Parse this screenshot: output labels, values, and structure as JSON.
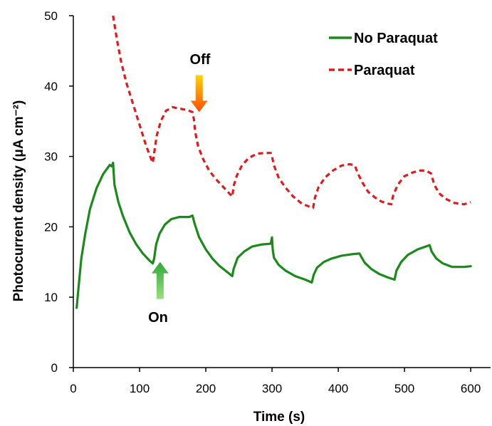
{
  "chart_data": {
    "type": "line",
    "xlabel": "Time (s)",
    "ylabel": "Photocurrent density (μA cm⁻²)",
    "xlim": [
      0,
      630
    ],
    "ylim": [
      0,
      50
    ],
    "xticks": [
      0,
      100,
      200,
      300,
      400,
      500,
      600
    ],
    "yticks": [
      0,
      10,
      20,
      30,
      40,
      50
    ],
    "grid": false,
    "legend_position": "top-right",
    "series": [
      {
        "name": "No Paraquat",
        "color": "#1a8a1a",
        "dash": "solid",
        "points": [
          [
            5,
            8.5
          ],
          [
            8,
            11.5
          ],
          [
            12,
            15.5
          ],
          [
            18,
            19
          ],
          [
            25,
            22.5
          ],
          [
            35,
            25.5
          ],
          [
            45,
            27.5
          ],
          [
            55,
            28.8
          ],
          [
            58,
            28.6
          ],
          [
            60,
            29.1
          ],
          [
            62,
            26
          ],
          [
            68,
            23.5
          ],
          [
            75,
            21.5
          ],
          [
            85,
            19.2
          ],
          [
            95,
            17.5
          ],
          [
            105,
            16.2
          ],
          [
            115,
            15.2
          ],
          [
            120,
            14.8
          ],
          [
            122,
            15.5
          ],
          [
            125,
            17.5
          ],
          [
            130,
            19
          ],
          [
            138,
            20.3
          ],
          [
            148,
            21.1
          ],
          [
            160,
            21.4
          ],
          [
            175,
            21.4
          ],
          [
            180,
            21.6
          ],
          [
            183,
            20.5
          ],
          [
            190,
            18.5
          ],
          [
            200,
            16.8
          ],
          [
            210,
            15.5
          ],
          [
            220,
            14.5
          ],
          [
            232,
            13.6
          ],
          [
            240,
            13
          ],
          [
            242,
            14
          ],
          [
            248,
            15.6
          ],
          [
            258,
            16.5
          ],
          [
            270,
            17.2
          ],
          [
            285,
            17.5
          ],
          [
            298,
            17.6
          ],
          [
            300,
            18.5
          ],
          [
            301,
            16.8
          ],
          [
            303,
            15.6
          ],
          [
            310,
            14.6
          ],
          [
            320,
            13.8
          ],
          [
            335,
            13
          ],
          [
            350,
            12.5
          ],
          [
            360,
            12.1
          ],
          [
            363,
            13.2
          ],
          [
            368,
            14.2
          ],
          [
            378,
            15
          ],
          [
            390,
            15.5
          ],
          [
            405,
            15.9
          ],
          [
            420,
            16.1
          ],
          [
            432,
            16.2
          ],
          [
            435,
            15.7
          ],
          [
            440,
            14.9
          ],
          [
            450,
            14
          ],
          [
            462,
            13.3
          ],
          [
            475,
            12.8
          ],
          [
            485,
            12.5
          ],
          [
            488,
            13.8
          ],
          [
            495,
            15
          ],
          [
            505,
            16
          ],
          [
            520,
            16.8
          ],
          [
            532,
            17.2
          ],
          [
            538,
            17.4
          ],
          [
            541,
            16.5
          ],
          [
            548,
            15.5
          ],
          [
            558,
            14.8
          ],
          [
            572,
            14.3
          ],
          [
            590,
            14.3
          ],
          [
            600,
            14.4
          ]
        ]
      },
      {
        "name": "Paraquat",
        "color": "#e31a1c",
        "dash": "dashed",
        "points": [
          [
            60,
            50
          ],
          [
            66,
            46.5
          ],
          [
            72,
            43.5
          ],
          [
            80,
            40.5
          ],
          [
            90,
            37.5
          ],
          [
            100,
            34.5
          ],
          [
            110,
            31.5
          ],
          [
            118,
            29.5
          ],
          [
            120,
            29.1
          ],
          [
            122,
            30.5
          ],
          [
            126,
            33
          ],
          [
            132,
            35
          ],
          [
            140,
            36.5
          ],
          [
            150,
            37
          ],
          [
            160,
            36.8
          ],
          [
            172,
            36.6
          ],
          [
            180,
            36.3
          ],
          [
            182,
            35.3
          ],
          [
            184,
            33.5
          ],
          [
            188,
            31.6
          ],
          [
            195,
            29.8
          ],
          [
            205,
            28
          ],
          [
            215,
            26.8
          ],
          [
            225,
            25.8
          ],
          [
            235,
            24.8
          ],
          [
            240,
            24.3
          ],
          [
            242,
            25.8
          ],
          [
            247,
            27.3
          ],
          [
            255,
            28.8
          ],
          [
            265,
            29.8
          ],
          [
            278,
            30.4
          ],
          [
            290,
            30.5
          ],
          [
            298,
            30.5
          ],
          [
            300,
            30
          ],
          [
            303,
            28.7
          ],
          [
            310,
            27
          ],
          [
            320,
            25.6
          ],
          [
            332,
            24.3
          ],
          [
            345,
            23.3
          ],
          [
            358,
            22.8
          ],
          [
            362,
            22.7
          ],
          [
            365,
            24.2
          ],
          [
            370,
            25.6
          ],
          [
            380,
            27
          ],
          [
            392,
            28
          ],
          [
            405,
            28.7
          ],
          [
            418,
            28.9
          ],
          [
            425,
            28.7
          ],
          [
            430,
            27.5
          ],
          [
            437,
            26.2
          ],
          [
            445,
            25
          ],
          [
            455,
            24.2
          ],
          [
            465,
            23.6
          ],
          [
            475,
            23.3
          ],
          [
            480,
            23.2
          ],
          [
            483,
            24.5
          ],
          [
            490,
            26
          ],
          [
            500,
            27.2
          ],
          [
            512,
            27.7
          ],
          [
            522,
            28
          ],
          [
            532,
            28
          ],
          [
            540,
            27.6
          ],
          [
            545,
            26
          ],
          [
            552,
            24.8
          ],
          [
            562,
            24
          ],
          [
            575,
            23.4
          ],
          [
            590,
            23.2
          ],
          [
            600,
            23.5
          ]
        ]
      }
    ],
    "annotations": [
      {
        "text": "Off",
        "color": "#ff6a00",
        "x": 190,
        "y": 36.3,
        "direction": "down"
      },
      {
        "text": "On",
        "color": "#4fbe4a",
        "x": 131,
        "y": 15,
        "direction": "up"
      }
    ]
  }
}
